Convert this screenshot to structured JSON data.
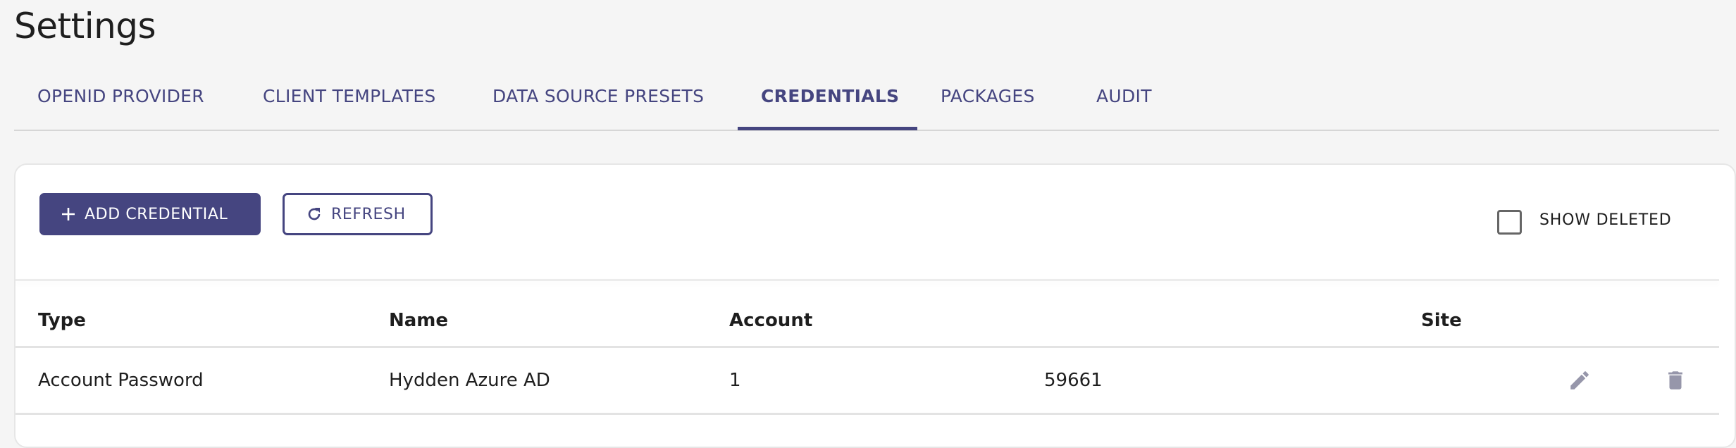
{
  "page": {
    "title": "Settings"
  },
  "tabs": [
    {
      "label": "OPENID PROVIDER",
      "active": false
    },
    {
      "label": "CLIENT TEMPLATES",
      "active": false
    },
    {
      "label": "DATA SOURCE PRESETS",
      "active": false
    },
    {
      "label": "CREDENTIALS",
      "active": true
    },
    {
      "label": "PACKAGES",
      "active": false
    },
    {
      "label": "AUDIT",
      "active": false
    }
  ],
  "toolbar": {
    "add_label": "ADD CREDENTIAL",
    "add_icon": "plus-icon",
    "refresh_label": "REFRESH",
    "refresh_icon": "refresh-icon",
    "show_deleted_label": "SHOW DELETED",
    "show_deleted_checked": false
  },
  "table": {
    "columns": [
      "Type",
      "Name",
      "Account",
      "Site"
    ],
    "rows": [
      {
        "type": "Account Password",
        "name": "Hydden Azure AD",
        "account": "1",
        "extra": "59661",
        "site": "",
        "actions": [
          "edit-icon",
          "delete-icon"
        ]
      }
    ]
  },
  "colors": {
    "accent": "#454580",
    "icon": "#9696aa",
    "background": "#f5f5f5"
  }
}
